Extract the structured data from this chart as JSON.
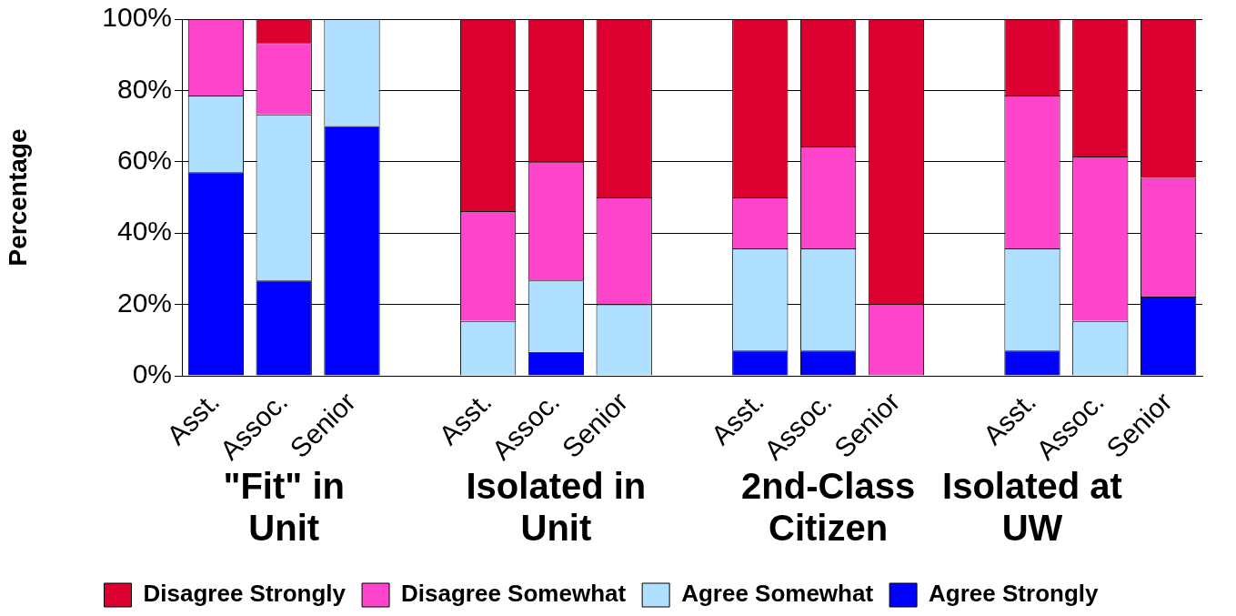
{
  "chart_data": {
    "type": "bar",
    "stacked": true,
    "ylabel": "Percentage",
    "categories": [
      "Asst.",
      "Assoc.",
      "Senior",
      null,
      "Asst.",
      "Assoc.",
      "Senior",
      null,
      "Asst.",
      "Assoc.",
      "Senior",
      null,
      "Asst.",
      "Assoc.",
      "Senior"
    ],
    "series": [
      {
        "name": "Agree Strongly",
        "color": "#0000ff",
        "values": [
          57.1,
          26.7,
          70,
          null,
          0,
          6.7,
          0,
          null,
          7.1,
          7.1,
          0,
          null,
          7.1,
          0,
          22.2
        ]
      },
      {
        "name": "Agree Somewhat",
        "color": "#b0e0ff",
        "values": [
          21.5,
          46.6,
          30,
          null,
          15.4,
          20,
          20,
          null,
          28.6,
          28.6,
          0,
          null,
          28.6,
          15.4,
          0
        ]
      },
      {
        "name": "Disagree Somewhat",
        "color": "#ff44cc",
        "values": [
          21.4,
          20,
          0,
          null,
          30.8,
          33.3,
          30,
          null,
          14.3,
          28.6,
          20,
          null,
          42.9,
          46.1,
          33.3
        ]
      },
      {
        "name": "Disagree Strongly",
        "color": "#dc0030",
        "values": [
          0,
          6.7,
          0,
          null,
          53.8,
          40,
          50,
          null,
          50,
          35.7,
          80,
          null,
          21.4,
          38.5,
          44.5
        ]
      }
    ],
    "ylim": [
      0,
      100
    ],
    "yticks": [
      {
        "value": 0,
        "label": "0%"
      },
      {
        "value": 20,
        "label": "20%"
      },
      {
        "value": 40,
        "label": "40%"
      },
      {
        "value": 60,
        "label": "60%"
      },
      {
        "value": 80,
        "label": "80%"
      },
      {
        "value": 100,
        "label": "100%"
      }
    ],
    "grid": "y",
    "legend": "bottom",
    "annotations": [
      "\"Fit\" in Unit",
      "Isolated in Unit",
      "2nd-Class Citizen",
      "Isolated at UW"
    ]
  }
}
